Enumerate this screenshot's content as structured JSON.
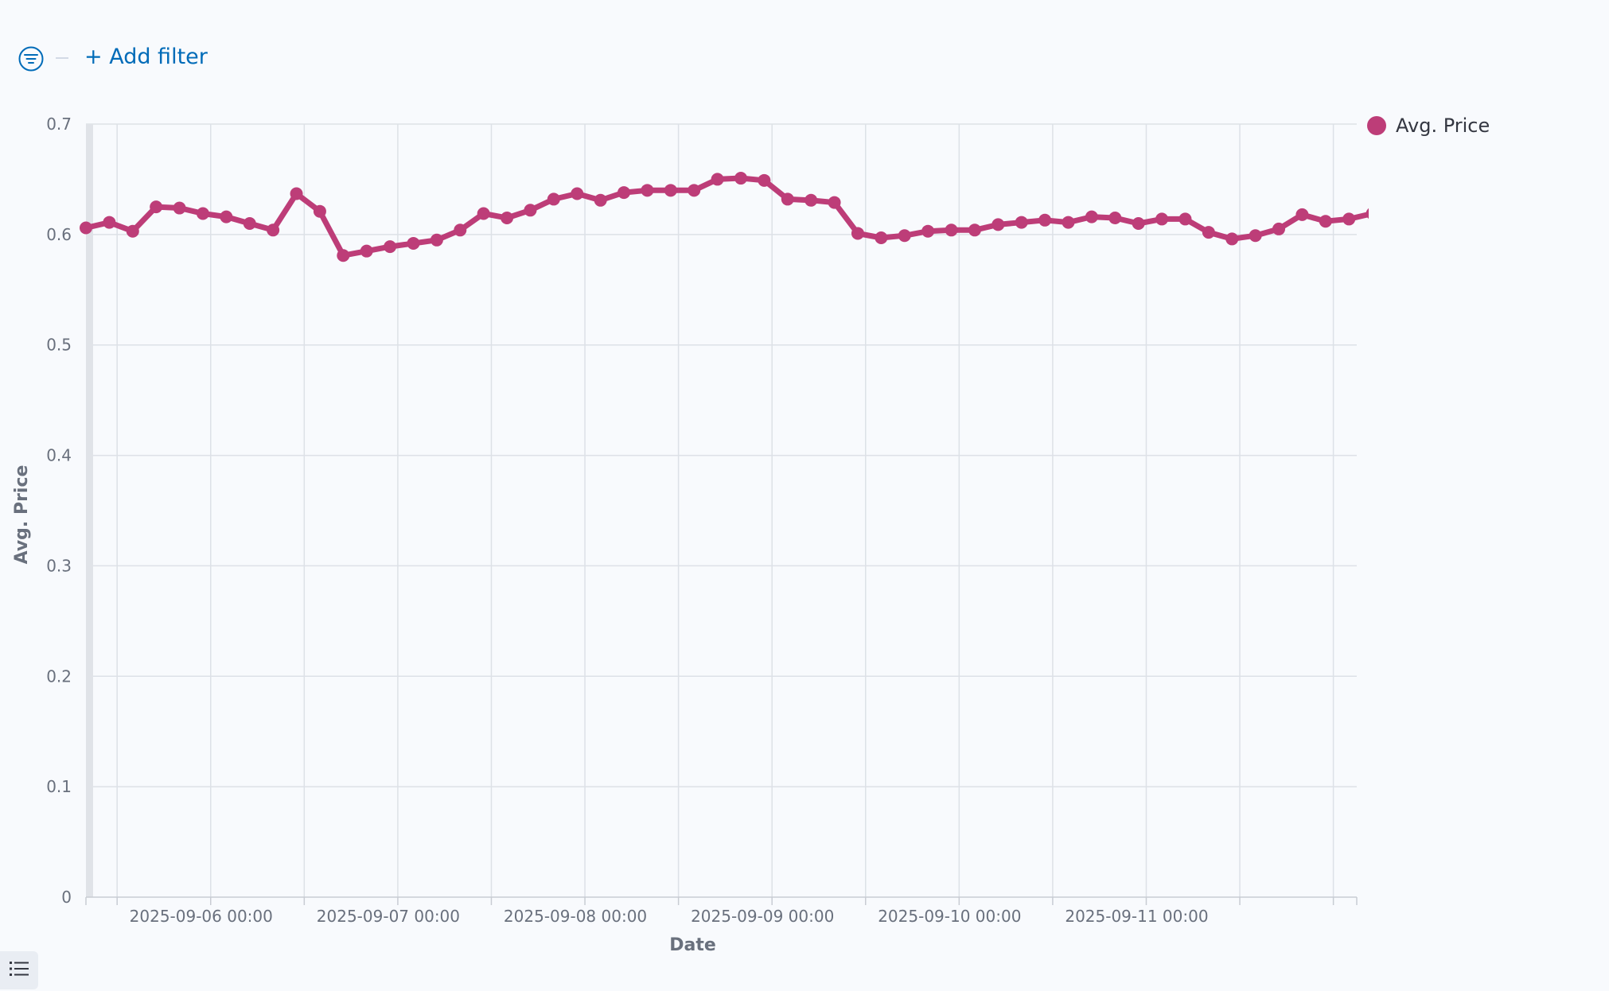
{
  "filter_bar": {
    "add_filter_label": "+ Add filter"
  },
  "legend": {
    "label": "Avg. Price"
  },
  "colors": {
    "series": "#bd3d78",
    "grid": "#dde1e7",
    "axis_text": "#69707d",
    "link": "#006bb8",
    "background": "#f8fafd"
  },
  "icons": {
    "filter": "filter-icon",
    "legend_toggle": "list-icon"
  },
  "chart_data": {
    "type": "line",
    "xlabel": "Date",
    "ylabel": "Avg. Price",
    "ylim": [
      0,
      0.7
    ],
    "y_ticks": [
      "0",
      "0.1",
      "0.2",
      "0.3",
      "0.4",
      "0.5",
      "0.6",
      "0.7"
    ],
    "x_range": [
      "2025-09-05 08:00",
      "2025-09-12 03:00"
    ],
    "x_tick_labels": [
      "2025-09-06 00:00",
      "2025-09-07 00:00",
      "2025-09-08 00:00",
      "2025-09-09 00:00",
      "2025-09-10 00:00",
      "2025-09-11 00:00"
    ],
    "grid": true,
    "legend_position": "top-right",
    "series": [
      {
        "name": "Avg. Price",
        "x": [
          "2025-09-05 08:00",
          "2025-09-05 11:00",
          "2025-09-05 14:00",
          "2025-09-05 17:00",
          "2025-09-05 20:00",
          "2025-09-05 23:00",
          "2025-09-06 02:00",
          "2025-09-06 05:00",
          "2025-09-06 08:00",
          "2025-09-06 11:00",
          "2025-09-06 14:00",
          "2025-09-06 17:00",
          "2025-09-06 20:00",
          "2025-09-06 23:00",
          "2025-09-07 02:00",
          "2025-09-07 05:00",
          "2025-09-07 08:00",
          "2025-09-07 11:00",
          "2025-09-07 14:00",
          "2025-09-07 17:00",
          "2025-09-07 20:00",
          "2025-09-07 23:00",
          "2025-09-08 02:00",
          "2025-09-08 05:00",
          "2025-09-08 08:00",
          "2025-09-08 11:00",
          "2025-09-08 14:00",
          "2025-09-08 17:00",
          "2025-09-08 20:00",
          "2025-09-08 23:00",
          "2025-09-09 02:00",
          "2025-09-09 05:00",
          "2025-09-09 08:00",
          "2025-09-09 11:00",
          "2025-09-09 14:00",
          "2025-09-09 17:00",
          "2025-09-09 20:00",
          "2025-09-09 23:00",
          "2025-09-10 02:00",
          "2025-09-10 05:00",
          "2025-09-10 08:00",
          "2025-09-10 11:00",
          "2025-09-10 14:00",
          "2025-09-10 17:00",
          "2025-09-10 20:00",
          "2025-09-10 23:00",
          "2025-09-11 02:00",
          "2025-09-11 05:00",
          "2025-09-11 08:00",
          "2025-09-11 11:00",
          "2025-09-11 14:00",
          "2025-09-11 17:00",
          "2025-09-11 20:00",
          "2025-09-11 23:00",
          "2025-09-12 02:00",
          "2025-09-12 05:00"
        ],
        "values": [
          0.606,
          0.611,
          0.603,
          0.625,
          0.624,
          0.619,
          0.616,
          0.61,
          0.604,
          0.637,
          0.621,
          0.581,
          0.585,
          0.589,
          0.592,
          0.595,
          0.604,
          0.619,
          0.615,
          0.622,
          0.632,
          0.637,
          0.631,
          0.638,
          0.64,
          0.64,
          0.64,
          0.65,
          0.651,
          0.649,
          0.632,
          0.631,
          0.629,
          0.601,
          0.597,
          0.599,
          0.603,
          0.604,
          0.604,
          0.609,
          0.611,
          0.613,
          0.611,
          0.616,
          0.615,
          0.61,
          0.614,
          0.614,
          0.602,
          0.596,
          0.599,
          0.605,
          0.618,
          0.612,
          0.614,
          0.619
        ]
      }
    ]
  }
}
